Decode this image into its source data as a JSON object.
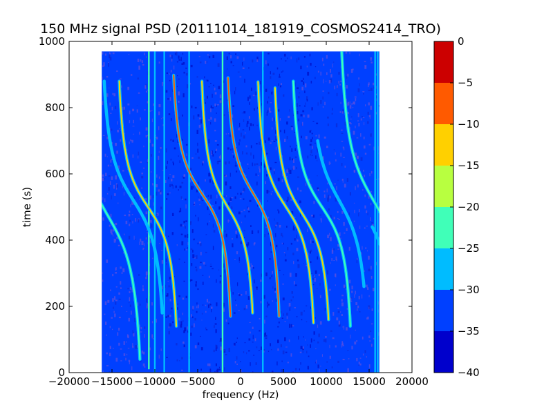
{
  "chart_data": {
    "type": "heatmap",
    "title": "150 MHz signal PSD (20111014_181919_COSMOS2414_TRO)",
    "xlabel": "frequency (Hz)",
    "ylabel": "time (s)",
    "xlim": [
      -20000,
      20000
    ],
    "ylim": [
      0,
      1000
    ],
    "xticks": [
      -20000,
      -15000,
      -10000,
      -5000,
      0,
      5000,
      10000,
      15000,
      20000
    ],
    "yticks": [
      0,
      200,
      400,
      600,
      800,
      1000
    ],
    "xtick_labels": [
      "−20000",
      "−15000",
      "−10000",
      "−5000",
      "0",
      "5000",
      "10000",
      "15000",
      "20000"
    ],
    "ytick_labels": [
      "0",
      "200",
      "400",
      "600",
      "800",
      "1000"
    ],
    "data_extent": {
      "x": [
        -16200,
        16200
      ],
      "y": [
        0,
        970
      ]
    },
    "background_level": -33,
    "colorbar": {
      "ticks": [
        0,
        -5,
        -10,
        -15,
        -20,
        -25,
        -30,
        -35,
        -40
      ],
      "tick_labels": [
        "0",
        "−5",
        "−10",
        "−15",
        "−20",
        "−25",
        "−30",
        "−35",
        "−40"
      ],
      "levels": [
        {
          "from": -40,
          "to": -35,
          "color": "#0000cc"
        },
        {
          "from": -35,
          "to": -30,
          "color": "#0040ff"
        },
        {
          "from": -30,
          "to": -25,
          "color": "#00bcff"
        },
        {
          "from": -25,
          "to": -20,
          "color": "#40ffb8"
        },
        {
          "from": -20,
          "to": -15,
          "color": "#b8ff40"
        },
        {
          "from": -15,
          "to": -10,
          "color": "#ffd000"
        },
        {
          "from": -10,
          "to": -5,
          "color": "#ff5a00"
        },
        {
          "from": -5,
          "to": 0,
          "color": "#cc0000"
        }
      ]
    },
    "vertical_lines": [
      {
        "f": -10700,
        "t0": 10,
        "t1": 970,
        "level": -24
      },
      {
        "f": -10000,
        "t0": 0,
        "t1": 970,
        "level": -26
      },
      {
        "f": -8900,
        "t0": 0,
        "t1": 970,
        "level": -27
      },
      {
        "f": -6000,
        "t0": 0,
        "t1": 970,
        "level": -27
      },
      {
        "f": -2100,
        "t0": 0,
        "t1": 970,
        "level": -24
      },
      {
        "f": 2600,
        "t0": 0,
        "t1": 970,
        "level": -28
      },
      {
        "f": 15700,
        "t0": 0,
        "t1": 970,
        "level": -26
      },
      {
        "f": 16000,
        "t0": 0,
        "t1": 970,
        "level": -27
      }
    ],
    "doppler_traces": [
      {
        "fc": -10800,
        "tc": 500,
        "a": 4000,
        "b": 2000,
        "t0": 140,
        "t1": 880,
        "level": -14
      },
      {
        "fc": -4500,
        "tc": 540,
        "a": 4000,
        "b": 2000,
        "t0": 170,
        "t1": 900,
        "level": -9
      },
      {
        "fc": -1500,
        "tc": 500,
        "a": 3600,
        "b": 2000,
        "t0": 180,
        "t1": 880,
        "level": -12
      },
      {
        "fc": 1500,
        "tc": 540,
        "a": 3600,
        "b": 2000,
        "t0": 170,
        "t1": 890,
        "level": -8
      },
      {
        "fc": 5300,
        "tc": 500,
        "a": 3900,
        "b": 2000,
        "t0": 150,
        "t1": 880,
        "level": -11
      },
      {
        "fc": 7200,
        "tc": 480,
        "a": 3800,
        "b": 2000,
        "t0": 160,
        "t1": 860,
        "level": -12
      },
      {
        "fc": 9500,
        "tc": 500,
        "a": 4000,
        "b": 2000,
        "t0": 140,
        "t1": 880,
        "level": -20
      },
      {
        "fc": -12500,
        "tc": 520,
        "a": 4200,
        "b": 2200,
        "t0": 180,
        "t1": 880,
        "level": -26
      },
      {
        "fc": -15400,
        "tc": 470,
        "a": 4500,
        "b": 2600,
        "t0": 40,
        "t1": 560,
        "level": -24
      },
      {
        "fc": 15500,
        "tc": 520,
        "a": 4500,
        "b": 2600,
        "t0": 480,
        "t1": 970,
        "level": -23
      },
      {
        "fc": 14500,
        "tc": 480,
        "a": 4500,
        "b": 2600,
        "t0": 20,
        "t1": 440,
        "level": -26
      },
      {
        "fc": 11500,
        "tc": 520,
        "a": 4000,
        "b": 2400,
        "t0": 260,
        "t1": 700,
        "level": -27
      }
    ]
  }
}
